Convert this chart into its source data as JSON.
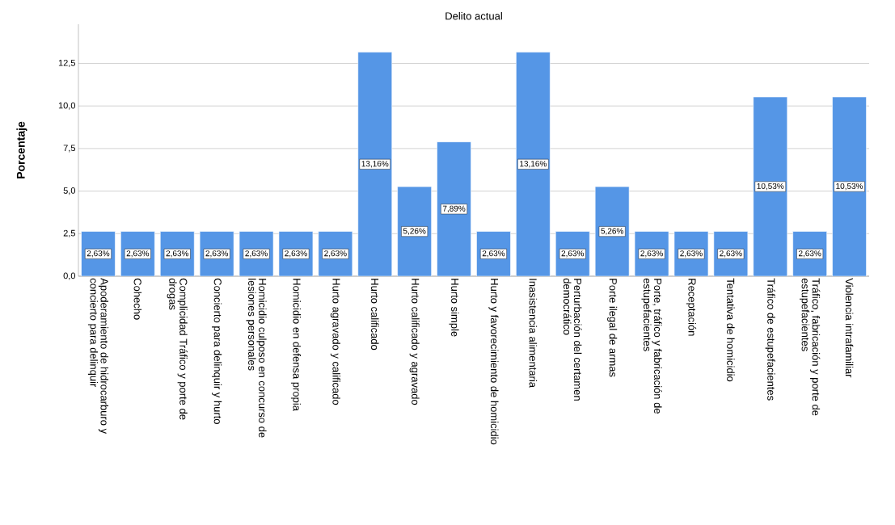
{
  "chart_data": {
    "type": "bar",
    "title": "Delito actual",
    "ylabel": "Porcentaje",
    "categories": [
      "Apoderamiento de hidrocarburo y concierto para delinquir",
      "Cohecho",
      "Complicidad Tráfico y porte de drogas",
      "Concierto para delinquir y hurto",
      "Homicidio culposo en concurso de lesiones personales",
      "Homicidio en defensa propia",
      "Hurto agravado y calificado",
      "Hurto calificado",
      "Hurto calificado y agravado",
      "Hurto simple",
      "Hurto y favorecimiento de homicidio",
      "Inasistencia alimentaria",
      "Perturbación del certamen democrático",
      "Porte ilegal de armas",
      "Porte, tráfico y fabricación de estupefacientes",
      "Receptación",
      "Tentativa de homicidio",
      "Tráfico de estupefacientes",
      "Tráfico, fabricación y porte de estupefacientes",
      "Violencia intrafamiliar"
    ],
    "values": [
      2.63,
      2.63,
      2.63,
      2.63,
      2.63,
      2.63,
      2.63,
      13.16,
      5.26,
      7.89,
      2.63,
      13.16,
      2.63,
      5.26,
      2.63,
      2.63,
      2.63,
      10.53,
      2.63,
      10.53
    ],
    "value_labels": [
      "2,63%",
      "2,63%",
      "2,63%",
      "2,63%",
      "2,63%",
      "2,63%",
      "2,63%",
      "13,16%",
      "5,26%",
      "7,89%",
      "2,63%",
      "13,16%",
      "2,63%",
      "5,26%",
      "2,63%",
      "2,63%",
      "2,63%",
      "10,53%",
      "2,63%",
      "10,53%"
    ],
    "color": "#5596e6",
    "ylim": [
      0,
      14.8
    ],
    "yticks": [
      {
        "value": 0,
        "label": "0,0"
      },
      {
        "value": 2.5,
        "label": "2,5"
      },
      {
        "value": 5,
        "label": "5,0"
      },
      {
        "value": 7.5,
        "label": "7,5"
      },
      {
        "value": 10,
        "label": "10,0"
      },
      {
        "value": 12.5,
        "label": "12,5"
      }
    ],
    "grid": "y"
  }
}
